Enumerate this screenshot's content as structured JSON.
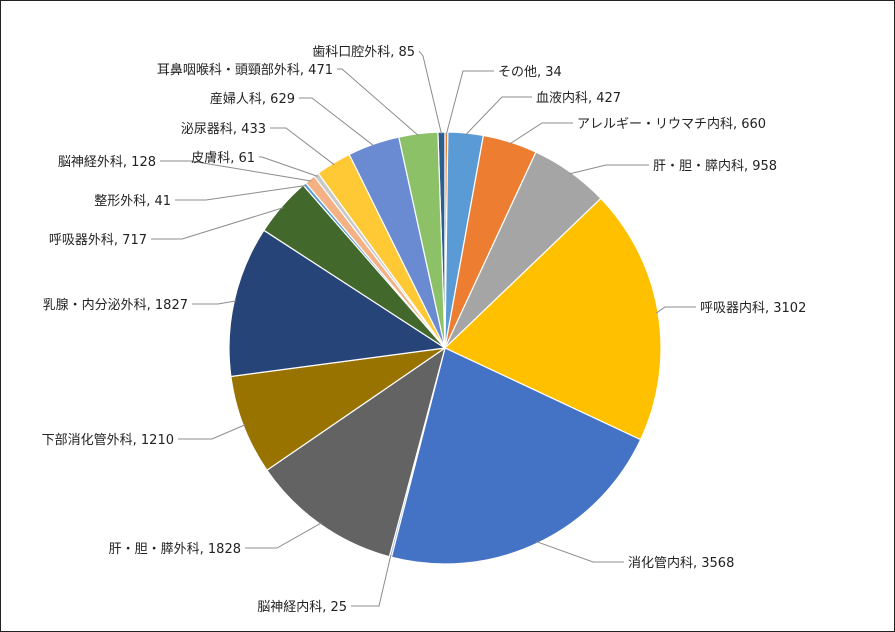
{
  "chart_data": {
    "type": "pie",
    "title": "",
    "start_category": "歯科口腔外科",
    "categories": [
      "その他",
      "血液内科",
      "アレルギー・リウマチ内科",
      "肝・胆・膵内科",
      "呼吸器内科",
      "消化管内科",
      "脳神経内科",
      "肝・胆・膵外科",
      "下部消化管外科",
      "乳腺・内分泌外科",
      "呼吸器外科",
      "整形外科",
      "脳神経外科",
      "皮膚科",
      "泌尿器科",
      "産婦人科",
      "耳鼻咽喉科・頭頸部外科",
      "歯科口腔外科"
    ],
    "values": [
      34,
      427,
      660,
      958,
      3102,
      3568,
      25,
      1828,
      1210,
      1827,
      717,
      41,
      128,
      61,
      433,
      629,
      471,
      85
    ],
    "colors": [
      "#ED7D31",
      "#5B9BD5",
      "#ED7D31",
      "#A5A5A5",
      "#FFC000",
      "#4472C4",
      "#8FAADC",
      "#636363",
      "#997300",
      "#264478",
      "#43682B",
      "#5B9BD5",
      "#F4B183",
      "#C9C9C9",
      "#FFC935",
      "#6A8AD1",
      "#8CC168",
      "#2E5E8E"
    ],
    "data_labels": [
      "その他, 34",
      "血液内科, 427",
      "アレルギー・リウマチ内科, 660",
      "肝・胆・膵内科, 958",
      "呼吸器内科, 3102",
      "消化管内科, 3568",
      "脳神経内科, 25",
      "肝・胆・膵外科, 1828",
      "下部消化管外科, 1210",
      "乳腺・内分泌外科, 1827",
      "呼吸器外科, 717",
      "整形外科, 41",
      "脳神経外科, 128",
      "皮膚科, 61",
      "泌尿器科, 433",
      "産婦人科, 629",
      "耳鼻咽喉科・頭頸部外科, 471",
      "歯科口腔外科, 85"
    ],
    "legend": "none",
    "label_position": "outside with leader lines"
  }
}
